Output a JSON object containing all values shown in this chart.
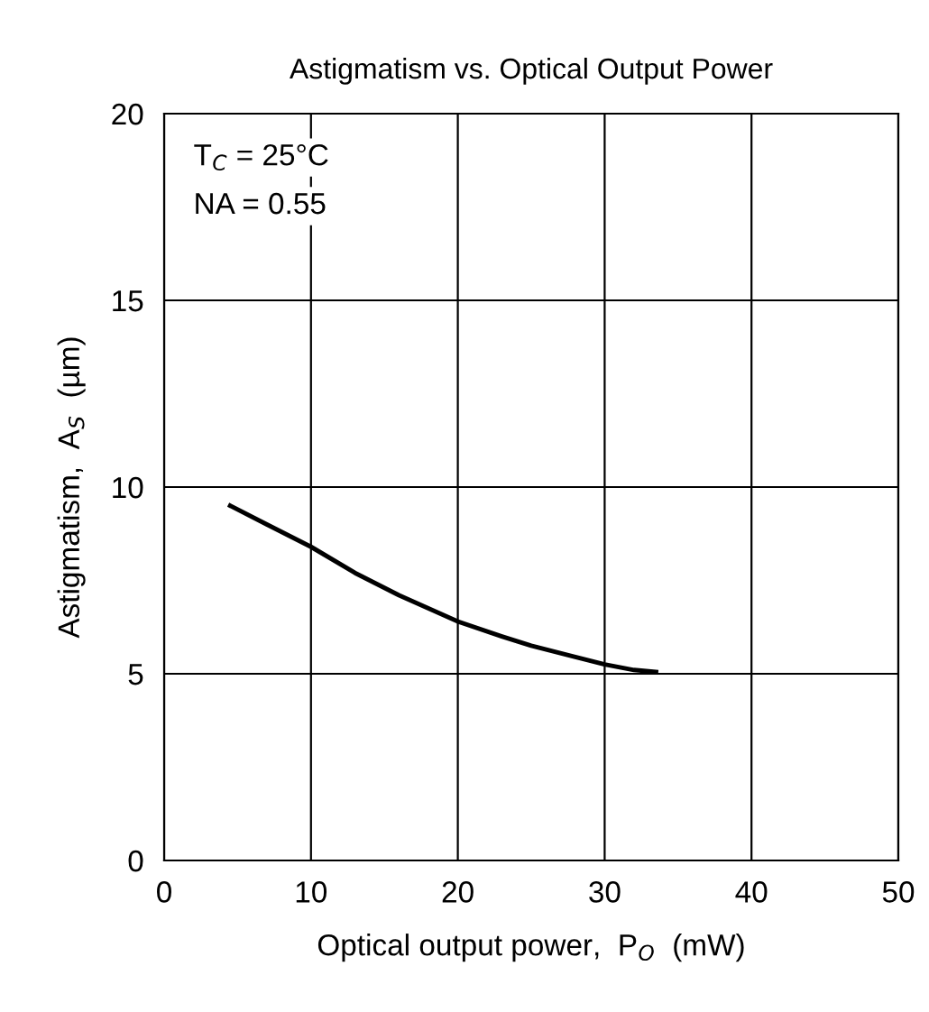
{
  "chart_data": {
    "type": "line",
    "title": "Astigmatism vs. Optical Output Power",
    "xlabel": "Optical output power,  P$_{O}$  (mW)",
    "ylabel": "Astigmatism,  A$_{S}$  (µm)",
    "x": [
      4.5,
      7,
      10,
      13,
      16,
      20,
      23,
      25,
      28,
      30,
      32,
      33.5
    ],
    "series": [
      {
        "color": "#000000",
        "values": [
          9.5,
          9.0,
          8.4,
          7.7,
          7.1,
          6.4,
          6.0,
          5.75,
          5.45,
          5.25,
          5.1,
          5.05
        ]
      }
    ],
    "xlim": [
      0,
      50
    ],
    "ylim": [
      0,
      20
    ],
    "xticks": [
      0,
      10,
      20,
      30,
      40,
      50
    ],
    "yticks": [
      0,
      5,
      10,
      15,
      20
    ],
    "grid": true,
    "line_style": "solid",
    "marker": "none",
    "annotations": [
      "T$_{C}$ = 25°C",
      "NA = 0.55"
    ]
  }
}
